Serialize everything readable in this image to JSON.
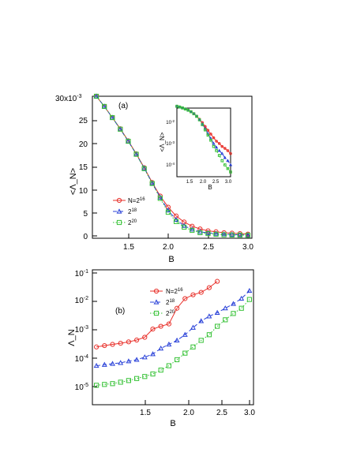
{
  "colors": {
    "red": "#e8302a",
    "blue": "#2840d8",
    "green": "#36c236",
    "axis": "#000000"
  },
  "chart_data": [
    {
      "type": "line",
      "panel_label": "(a)",
      "xlabel": "B",
      "ylabel": "<Λ_N>",
      "y_multiplier_label": "30x10",
      "y_multiplier_exp": "-3",
      "xlim": [
        1.05,
        3.05
      ],
      "ylim": [
        -0.6,
        30
      ],
      "xticks": [
        "1.5",
        "2.0",
        "2.5",
        "3.0"
      ],
      "yticks": [
        "25",
        "20",
        "15",
        "10",
        "5",
        "0"
      ],
      "legend": {
        "position": "lower-left",
        "entries": [
          "N=2",
          "2",
          "2"
        ],
        "exponents": [
          "16",
          "18",
          "20"
        ]
      },
      "series": [
        {
          "name": "N=2^16",
          "color": "red",
          "marker": "circle",
          "dash": "solid",
          "x": [
            1.1,
            1.2,
            1.3,
            1.4,
            1.5,
            1.6,
            1.7,
            1.8,
            1.9,
            2.0,
            2.1,
            2.2,
            2.3,
            2.4,
            2.5,
            2.6,
            2.7,
            2.8,
            2.9,
            3.0
          ],
          "y": [
            30,
            27.8,
            25.4,
            23,
            20.4,
            17.6,
            14.6,
            11.4,
            8.5,
            6.1,
            4.2,
            2.9,
            2.0,
            1.4,
            1.0,
            0.8,
            0.6,
            0.5,
            0.4,
            0.3
          ]
        },
        {
          "name": "2^18",
          "color": "blue",
          "marker": "triangle",
          "dash": "dashed",
          "x": [
            1.1,
            1.2,
            1.3,
            1.4,
            1.5,
            1.6,
            1.7,
            1.8,
            1.9,
            2.0,
            2.1,
            2.2,
            2.3,
            2.4,
            2.5,
            2.6,
            2.7,
            2.8,
            2.9,
            3.0
          ],
          "y": [
            30,
            27.8,
            25.4,
            22.9,
            20.3,
            17.5,
            14.5,
            11.3,
            8.2,
            5.4,
            3.4,
            2.1,
            1.3,
            0.8,
            0.55,
            0.4,
            0.3,
            0.2,
            0.15,
            0.1
          ]
        },
        {
          "name": "2^20",
          "color": "green",
          "marker": "square",
          "dash": "dotted",
          "x": [
            1.1,
            1.2,
            1.3,
            1.4,
            1.5,
            1.6,
            1.7,
            1.8,
            1.9,
            2.0,
            2.1,
            2.2,
            2.3,
            2.4,
            2.5,
            2.6,
            2.7,
            2.8,
            2.9,
            3.0
          ],
          "y": [
            30,
            27.8,
            25.4,
            22.9,
            20.3,
            17.5,
            14.4,
            11.2,
            8.0,
            5.0,
            3.0,
            1.8,
            1.1,
            0.6,
            0.4,
            0.25,
            0.15,
            0.1,
            0.07,
            0.05
          ]
        }
      ],
      "inset": {
        "type": "line",
        "yscale": "log",
        "xlabel": "B",
        "ylabel": "<Λ_N>",
        "xlim": [
          1.1,
          3.0
        ],
        "ylim_log10": [
          -4.5,
          -1.6
        ],
        "xticks": [
          "1.5",
          "2.0",
          "2.5",
          "3.0"
        ],
        "yticks": [
          "10",
          "10",
          "10"
        ],
        "ytick_exponents": [
          "-2",
          "-3",
          "-4"
        ],
        "series": [
          {
            "name": "N=2^16",
            "color": "red",
            "marker": "circle",
            "dash": "solid",
            "x": [
              1.1,
              1.2,
              1.3,
              1.4,
              1.5,
              1.6,
              1.7,
              1.8,
              1.9,
              2.0,
              2.1,
              2.2,
              2.3,
              2.4,
              2.5,
              2.6,
              2.7,
              2.8,
              2.9,
              3.0
            ],
            "y": [
              0.03,
              0.0278,
              0.0254,
              0.023,
              0.0204,
              0.0176,
              0.0146,
              0.0114,
              0.0085,
              0.0061,
              0.0042,
              0.0029,
              0.002,
              0.0014,
              0.001,
              0.0008,
              0.0006,
              0.0005,
              0.0004,
              0.0003
            ]
          },
          {
            "name": "2^18",
            "color": "blue",
            "marker": "triangle",
            "dash": "dashed",
            "x": [
              1.1,
              1.2,
              1.3,
              1.4,
              1.5,
              1.6,
              1.7,
              1.8,
              1.9,
              2.0,
              2.1,
              2.2,
              2.3,
              2.4,
              2.5,
              2.6,
              2.7,
              2.8,
              2.9,
              3.0
            ],
            "y": [
              0.03,
              0.0278,
              0.0254,
              0.0229,
              0.0203,
              0.0175,
              0.0145,
              0.0113,
              0.0082,
              0.0054,
              0.0034,
              0.0021,
              0.0013,
              0.0008,
              0.00055,
              0.0004,
              0.0003,
              0.0002,
              0.00015,
              0.0001
            ]
          },
          {
            "name": "2^20",
            "color": "green",
            "marker": "square",
            "dash": "dotted",
            "x": [
              1.1,
              1.2,
              1.3,
              1.4,
              1.5,
              1.6,
              1.7,
              1.8,
              1.9,
              2.0,
              2.1,
              2.2,
              2.3,
              2.4,
              2.5,
              2.6,
              2.7,
              2.8,
              2.9,
              3.0
            ],
            "y": [
              0.03,
              0.0278,
              0.0254,
              0.0229,
              0.0203,
              0.0175,
              0.0144,
              0.0112,
              0.008,
              0.005,
              0.003,
              0.0018,
              0.0011,
              0.0006,
              0.0004,
              0.00025,
              0.00015,
              0.0001,
              7e-05,
              5e-05
            ]
          }
        ]
      }
    },
    {
      "type": "line",
      "yscale": "log",
      "panel_label": "(b)",
      "xlabel": "B",
      "ylabel": "Λ_N",
      "xlim": [
        1.05,
        3.05
      ],
      "ylim_log10": [
        -5.1,
        -0.9
      ],
      "xticks": [
        "1.5",
        "2.0",
        "2.5",
        "3.0"
      ],
      "yticks": [
        "10",
        "10",
        "10",
        "10",
        "10"
      ],
      "ytick_exponents": [
        "-1",
        "-2",
        "-3",
        "-4",
        "-5"
      ],
      "legend": {
        "position": "top-center",
        "entries": [
          "N=2",
          "2",
          "2"
        ],
        "exponents": [
          "16",
          "18",
          "20"
        ]
      },
      "series": [
        {
          "name": "N=2^16",
          "color": "red",
          "marker": "circle",
          "dash": "solid",
          "x": [
            1.1,
            1.2,
            1.3,
            1.4,
            1.5,
            1.6,
            1.7,
            1.8,
            1.9,
            2.0,
            2.1,
            2.2,
            2.3,
            2.4,
            2.5,
            2.6
          ],
          "y": [
            0.0005,
            0.00055,
            0.0006,
            0.00065,
            0.00072,
            0.00082,
            0.001,
            0.0018,
            0.0022,
            0.0026,
            0.008,
            0.016,
            0.021,
            0.025,
            0.035,
            0.055
          ]
        },
        {
          "name": "2^18",
          "color": "blue",
          "marker": "triangle",
          "dash": "dashed",
          "x": [
            1.1,
            1.2,
            1.3,
            1.4,
            1.5,
            1.6,
            1.7,
            1.8,
            1.9,
            2.0,
            2.1,
            2.2,
            2.3,
            2.4,
            2.5,
            2.6,
            2.7,
            2.8,
            2.9,
            3.0
          ],
          "y": [
            0.00013,
            0.00014,
            0.00015,
            0.00016,
            0.00018,
            0.0002,
            0.00024,
            0.0003,
            0.00045,
            0.0006,
            0.0008,
            0.0012,
            0.002,
            0.0032,
            0.0045,
            0.0058,
            0.008,
            0.011,
            0.016,
            0.028
          ]
        },
        {
          "name": "2^20",
          "color": "green",
          "marker": "square",
          "dash": "dotted",
          "x": [
            1.1,
            1.2,
            1.3,
            1.4,
            1.5,
            1.6,
            1.7,
            1.8,
            1.9,
            2.0,
            2.1,
            2.2,
            2.3,
            2.4,
            2.5,
            2.6,
            2.7,
            2.8,
            2.9,
            3.0
          ],
          "y": [
            3.2e-05,
            3.4e-05,
            3.6e-05,
            4e-05,
            4.5e-05,
            5.2e-05,
            6e-05,
            7.2e-05,
            9.5e-05,
            0.00013,
            0.0002,
            0.00032,
            0.0005,
            0.0008,
            0.0012,
            0.0022,
            0.0035,
            0.0055,
            0.008,
            0.015
          ]
        }
      ]
    }
  ]
}
